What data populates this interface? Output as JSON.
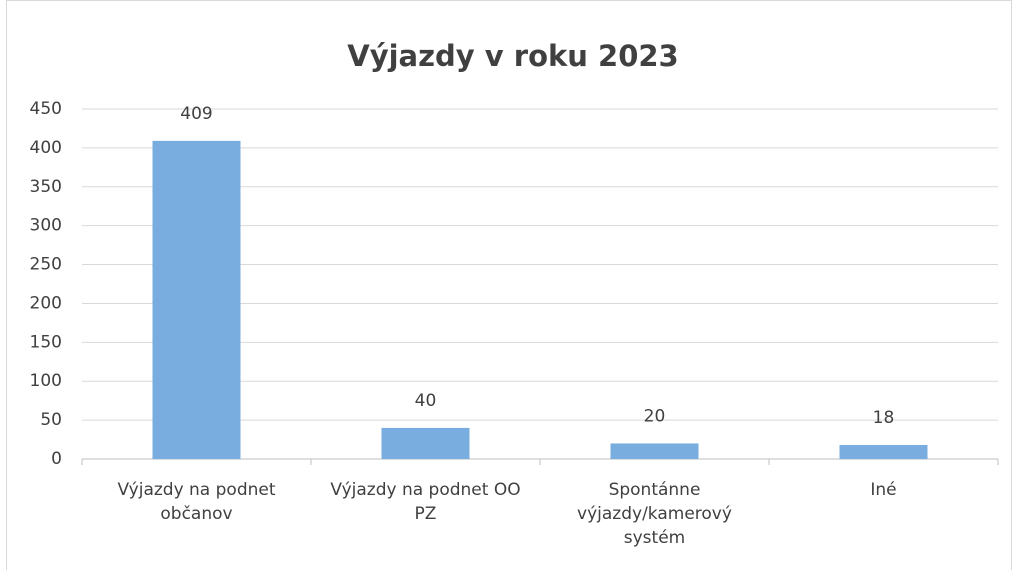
{
  "chart_data": {
    "type": "bar",
    "title": "Výjazdy v roku 2023",
    "categories": [
      "Výjazdy na podnet občanov",
      "Výjazdy na podnet OO PZ",
      "Spontánne výjazdy/kamerový systém",
      "Iné"
    ],
    "values": [
      409,
      40,
      20,
      18
    ],
    "color": "#7aaddf",
    "ylim": [
      0,
      450
    ],
    "yticks": [
      0,
      50,
      100,
      150,
      200,
      250,
      300,
      350,
      400,
      450
    ],
    "grid": true
  }
}
